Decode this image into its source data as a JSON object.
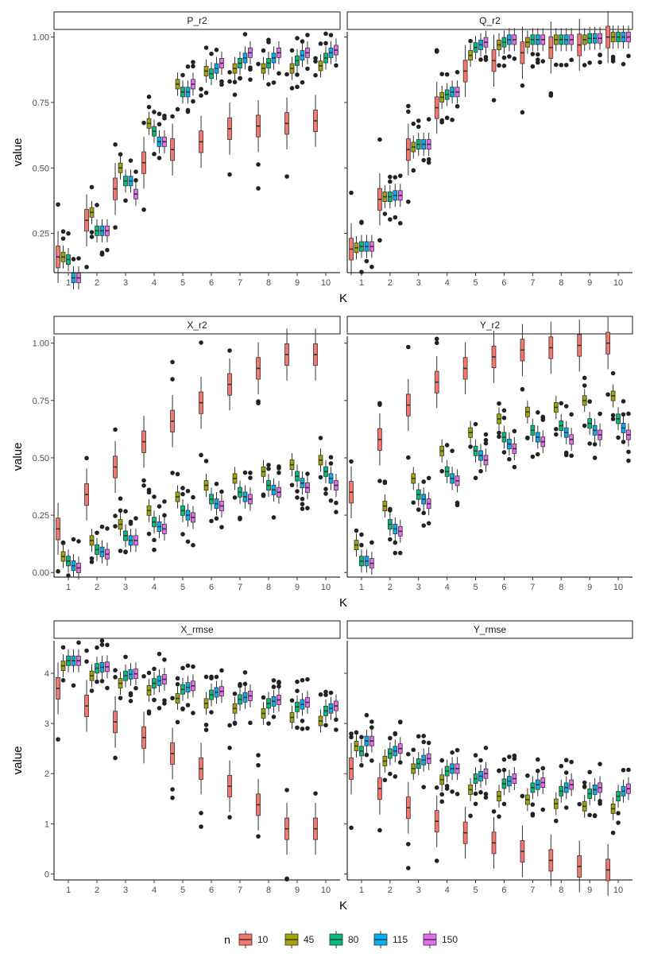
{
  "chart_data": {
    "type": "boxplot-facets",
    "legend": {
      "title": "n",
      "position": "bottom",
      "entries": [
        {
          "label": "10",
          "color": "#F8766D"
        },
        {
          "label": "45",
          "color": "#A3A500"
        },
        {
          "label": "80",
          "color": "#00BF7D"
        },
        {
          "label": "115",
          "color": "#00B0F6"
        },
        {
          "label": "150",
          "color": "#E76BF3"
        }
      ]
    },
    "x_categories": [
      "1",
      "2",
      "3",
      "4",
      "5",
      "6",
      "7",
      "8",
      "9",
      "10"
    ],
    "rows": [
      {
        "xlabel": "K",
        "ylabel": "value",
        "ylim": [
          0.1,
          1.02
        ],
        "yticks": [
          0.25,
          0.5,
          0.75,
          1.0
        ],
        "ytick_labels": [
          "0.25",
          "0.50",
          "0.75",
          "1.00"
        ],
        "panels": [
          {
            "title": "P_r2",
            "medians": [
              [
                0.16,
                0.16,
                0.15,
                0.08,
                0.08
              ],
              [
                0.3,
                0.33,
                0.26,
                0.26,
                0.26
              ],
              [
                0.42,
                0.5,
                0.45,
                0.45,
                0.4
              ],
              [
                0.52,
                0.67,
                0.64,
                0.6,
                0.6
              ],
              [
                0.57,
                0.82,
                0.79,
                0.79,
                0.82
              ],
              [
                0.6,
                0.87,
                0.86,
                0.88,
                0.9
              ],
              [
                0.65,
                0.88,
                0.9,
                0.92,
                0.94
              ],
              [
                0.66,
                0.88,
                0.9,
                0.92,
                0.94
              ],
              [
                0.67,
                0.88,
                0.91,
                0.93,
                0.94
              ],
              [
                0.68,
                0.89,
                0.92,
                0.94,
                0.95
              ]
            ]
          },
          {
            "title": "Q_r2",
            "medians": [
              [
                0.19,
                0.195,
                0.2,
                0.2,
                0.2
              ],
              [
                0.38,
                0.39,
                0.39,
                0.395,
                0.395
              ],
              [
                0.57,
                0.58,
                0.59,
                0.59,
                0.59
              ],
              [
                0.73,
                0.77,
                0.78,
                0.79,
                0.79
              ],
              [
                0.87,
                0.93,
                0.96,
                0.97,
                0.98
              ],
              [
                0.91,
                0.97,
                0.98,
                0.99,
                0.99
              ],
              [
                0.94,
                0.98,
                0.99,
                0.99,
                0.99
              ],
              [
                0.96,
                0.99,
                0.99,
                0.99,
                0.99
              ],
              [
                0.97,
                0.99,
                0.995,
                0.995,
                0.995
              ],
              [
                1.0,
                1.0,
                1.0,
                1.0,
                1.0
              ]
            ]
          }
        ]
      },
      {
        "xlabel": "K",
        "ylabel": "value",
        "ylim": [
          -0.02,
          1.03
        ],
        "yticks": [
          0.0,
          0.25,
          0.5,
          0.75,
          1.0
        ],
        "ytick_labels": [
          "0.00",
          "0.25",
          "0.50",
          "0.75",
          "1.00"
        ],
        "panels": [
          {
            "title": "X_r2",
            "medians": [
              [
                0.19,
                0.07,
                0.05,
                0.03,
                0.02
              ],
              [
                0.34,
                0.14,
                0.1,
                0.09,
                0.08
              ],
              [
                0.46,
                0.21,
                0.16,
                0.14,
                0.14
              ],
              [
                0.57,
                0.27,
                0.22,
                0.2,
                0.19
              ],
              [
                0.66,
                0.33,
                0.27,
                0.25,
                0.24
              ],
              [
                0.74,
                0.38,
                0.32,
                0.3,
                0.29
              ],
              [
                0.82,
                0.41,
                0.35,
                0.33,
                0.32
              ],
              [
                0.89,
                0.44,
                0.38,
                0.36,
                0.35
              ],
              [
                0.95,
                0.47,
                0.42,
                0.39,
                0.37
              ],
              [
                0.95,
                0.49,
                0.44,
                0.41,
                0.38
              ]
            ]
          },
          {
            "title": "Y_r2",
            "medians": [
              [
                0.35,
                0.12,
                0.05,
                0.05,
                0.04
              ],
              [
                0.58,
                0.29,
                0.21,
                0.19,
                0.18
              ],
              [
                0.73,
                0.41,
                0.34,
                0.32,
                0.3
              ],
              [
                0.83,
                0.53,
                0.44,
                0.41,
                0.4
              ],
              [
                0.89,
                0.61,
                0.53,
                0.51,
                0.49
              ],
              [
                0.94,
                0.67,
                0.59,
                0.56,
                0.54
              ],
              [
                0.97,
                0.7,
                0.62,
                0.59,
                0.57
              ],
              [
                0.98,
                0.72,
                0.64,
                0.61,
                0.58
              ],
              [
                0.99,
                0.75,
                0.65,
                0.62,
                0.6
              ],
              [
                1.0,
                0.77,
                0.67,
                0.63,
                0.6
              ]
            ]
          }
        ]
      },
      {
        "xlabel": "K",
        "ylabel": "value",
        "ylim": [
          -0.12,
          4.65
        ],
        "yticks": [
          0,
          1,
          2,
          3,
          4
        ],
        "ytick_labels": [
          "0",
          "1",
          "2",
          "3",
          "4"
        ],
        "panels": [
          {
            "title": "X_rmse",
            "medians": [
              [
                3.7,
                4.15,
                4.25,
                4.25,
                4.25
              ],
              [
                3.35,
                3.95,
                4.1,
                4.12,
                4.13
              ],
              [
                3.03,
                3.8,
                3.95,
                3.98,
                3.99
              ],
              [
                2.72,
                3.66,
                3.8,
                3.85,
                3.88
              ],
              [
                2.4,
                3.5,
                3.68,
                3.72,
                3.75
              ],
              [
                2.1,
                3.4,
                3.57,
                3.62,
                3.64
              ],
              [
                1.75,
                3.3,
                3.48,
                3.52,
                3.55
              ],
              [
                1.38,
                3.2,
                3.4,
                3.44,
                3.47
              ],
              [
                0.9,
                3.12,
                3.33,
                3.38,
                3.42
              ],
              [
                0.9,
                3.05,
                3.25,
                3.3,
                3.35
              ]
            ]
          },
          {
            "title": "Y_rmse",
            "medians": [
              [
                2.1,
                2.55,
                2.45,
                2.65,
                2.65
              ],
              [
                1.7,
                2.25,
                2.4,
                2.45,
                2.5
              ],
              [
                1.32,
                2.1,
                2.2,
                2.27,
                2.3
              ],
              [
                1.05,
                1.88,
                2.05,
                2.1,
                2.1
              ],
              [
                0.82,
                1.68,
                1.9,
                1.95,
                2.0
              ],
              [
                0.62,
                1.55,
                1.8,
                1.85,
                1.9
              ],
              [
                0.45,
                1.48,
                1.72,
                1.78,
                1.82
              ],
              [
                0.27,
                1.4,
                1.65,
                1.72,
                1.78
              ],
              [
                0.15,
                1.35,
                1.6,
                1.68,
                1.72
              ],
              [
                0.08,
                1.3,
                1.55,
                1.65,
                1.7
              ]
            ]
          }
        ]
      }
    ]
  }
}
